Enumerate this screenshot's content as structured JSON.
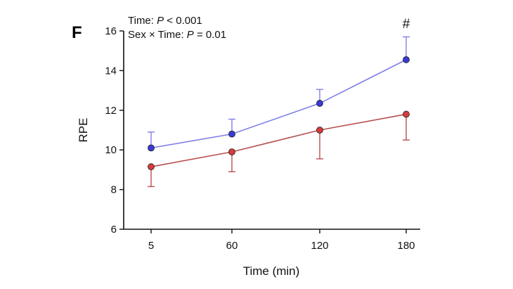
{
  "panel_label": "F",
  "stats": {
    "line1_prefix": "Time: ",
    "line1_p": "P",
    "line1_rest": " < 0.001",
    "line2_prefix": "Sex × Time: ",
    "line2_p": "P",
    "line2_rest": " = 0.01"
  },
  "chart_data": {
    "type": "line",
    "title": "",
    "xlabel": "Time (min)",
    "ylabel": "RPE",
    "categories": [
      "5",
      "60",
      "120",
      "180"
    ],
    "ylim": [
      6,
      16
    ],
    "yticks": [
      6,
      8,
      10,
      12,
      14,
      16
    ],
    "grid": false,
    "series": [
      {
        "color": "#3a3ad6",
        "line_color": "#7f7fe8",
        "values": [
          10.1,
          10.8,
          12.35,
          14.55
        ],
        "error": [
          0.8,
          0.75,
          0.7,
          1.15
        ],
        "error_direction": "up"
      },
      {
        "color": "#d63a3a",
        "line_color": "#b85050",
        "values": [
          9.15,
          9.9,
          11.0,
          11.8
        ],
        "error": [
          1.0,
          1.0,
          1.45,
          1.3
        ],
        "error_direction": "down"
      }
    ],
    "annotations": [
      {
        "category": "180",
        "text": "#"
      }
    ]
  }
}
